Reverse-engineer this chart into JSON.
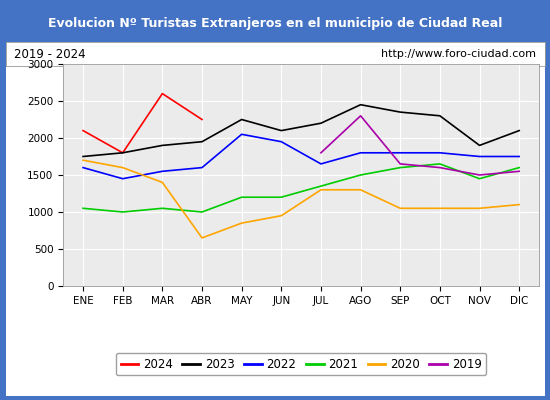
{
  "title": "Evolucion Nº Turistas Extranjeros en el municipio de Ciudad Real",
  "subtitle_left": "2019 - 2024",
  "subtitle_right": "http://www.foro-ciudad.com",
  "title_bg_color": "#4472c4",
  "title_text_color": "#ffffff",
  "months": [
    "ENE",
    "FEB",
    "MAR",
    "ABR",
    "MAY",
    "JUN",
    "JUL",
    "AGO",
    "SEP",
    "OCT",
    "NOV",
    "DIC"
  ],
  "ylim": [
    0,
    3000
  ],
  "yticks": [
    0,
    500,
    1000,
    1500,
    2000,
    2500,
    3000
  ],
  "series": {
    "2024": {
      "color": "#ff0000",
      "values": [
        2100,
        1800,
        2600,
        2250,
        null,
        null,
        null,
        null,
        null,
        null,
        null,
        null
      ]
    },
    "2023": {
      "color": "#000000",
      "values": [
        1750,
        1800,
        1900,
        1950,
        2250,
        2100,
        2200,
        2450,
        2350,
        2300,
        1900,
        2100
      ]
    },
    "2022": {
      "color": "#0000ff",
      "values": [
        1600,
        1450,
        1550,
        1600,
        2050,
        1950,
        1650,
        1800,
        1800,
        1800,
        1750,
        1750
      ]
    },
    "2021": {
      "color": "#00cc00",
      "values": [
        1050,
        1000,
        1050,
        1000,
        1200,
        1200,
        1350,
        1500,
        1600,
        1650,
        1450,
        1600
      ]
    },
    "2020": {
      "color": "#ffa500",
      "values": [
        1700,
        1600,
        1400,
        650,
        850,
        950,
        1300,
        1300,
        1050,
        1050,
        1050,
        1100
      ]
    },
    "2019": {
      "color": "#aa00aa",
      "values": [
        null,
        null,
        null,
        null,
        null,
        null,
        1800,
        2300,
        1650,
        1600,
        1500,
        1550
      ]
    }
  },
  "legend_order": [
    "2024",
    "2023",
    "2022",
    "2021",
    "2020",
    "2019"
  ],
  "plot_bg_color": "#ebebeb",
  "grid_color": "#ffffff",
  "border_color": "#4472c4",
  "figure_bg": "#ffffff"
}
